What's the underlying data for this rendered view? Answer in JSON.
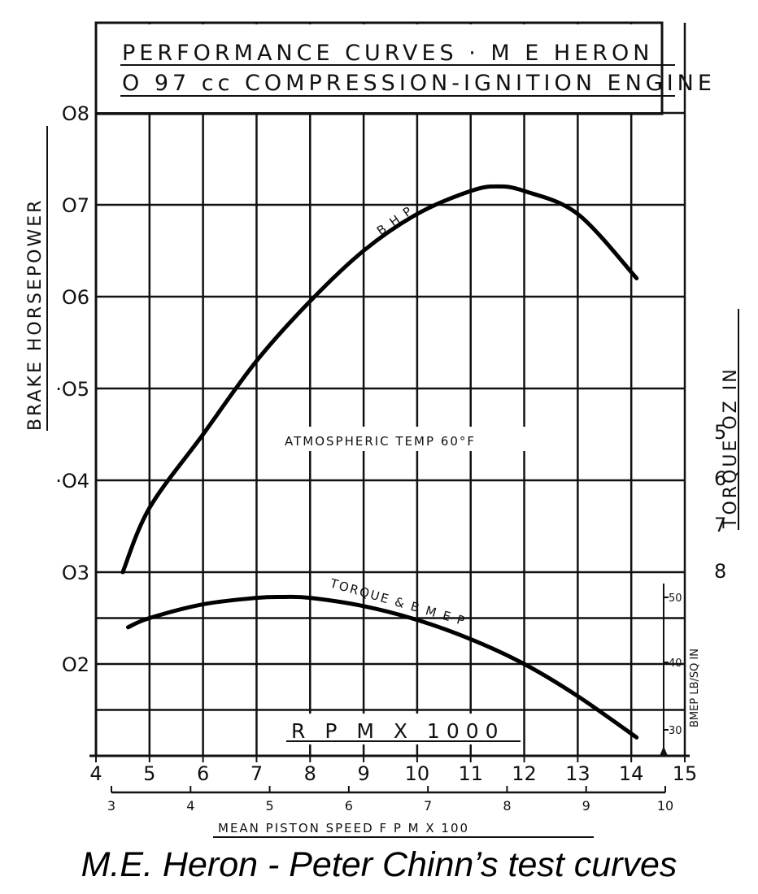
{
  "caption": "M.E. Heron - Peter Chinn’s test curves",
  "chart_data": {
    "type": "line",
    "title": "PERFORMANCE CURVES · M E HERON",
    "subtitle": "O 97 cc COMPRESSION-IGNITION ENGINE",
    "annotation": "ATMOSPHERIC TEMP 60°F",
    "xlabel": "R P M X 1000",
    "xlim": [
      4,
      15
    ],
    "x_ticks": [
      "4",
      "5",
      "6",
      "7",
      "8",
      "9",
      "10",
      "11",
      "12",
      "13",
      "14",
      "15"
    ],
    "x2label": "MEAN PISTON SPEED F P M X 100",
    "x2_ticks": [
      "3",
      "4",
      "5",
      "6",
      "7",
      "8",
      "9",
      "10"
    ],
    "ylabel": "BRAKE HORSEPOWER",
    "ylim": [
      0.1,
      0.8
    ],
    "y_ticks": [
      "O8",
      "O7",
      "O6",
      "·O5",
      "·O4",
      "O3",
      "O2"
    ],
    "y2label": "TORQUE OZ IN",
    "y2_ticks": [
      "8",
      "7",
      "6",
      "5"
    ],
    "y3label": "BMEP LB/SQ IN",
    "y3_ticks": [
      "50",
      "40",
      "30"
    ],
    "series": [
      {
        "name": "B H P",
        "x": [
          4.5,
          5,
          6,
          7,
          8,
          9,
          10,
          11,
          11.5,
          12,
          13,
          14.1
        ],
        "values": [
          0.3,
          0.37,
          0.45,
          0.53,
          0.595,
          0.65,
          0.69,
          0.715,
          0.72,
          0.715,
          0.69,
          0.62
        ]
      },
      {
        "name": "TORQUE & B M E P",
        "x": [
          4.6,
          5,
          6,
          7,
          7.5,
          8,
          9,
          10,
          11,
          12,
          13,
          14.1
        ],
        "values": [
          0.24,
          0.25,
          0.265,
          0.272,
          0.273,
          0.272,
          0.263,
          0.248,
          0.227,
          0.2,
          0.165,
          0.12
        ]
      }
    ]
  }
}
